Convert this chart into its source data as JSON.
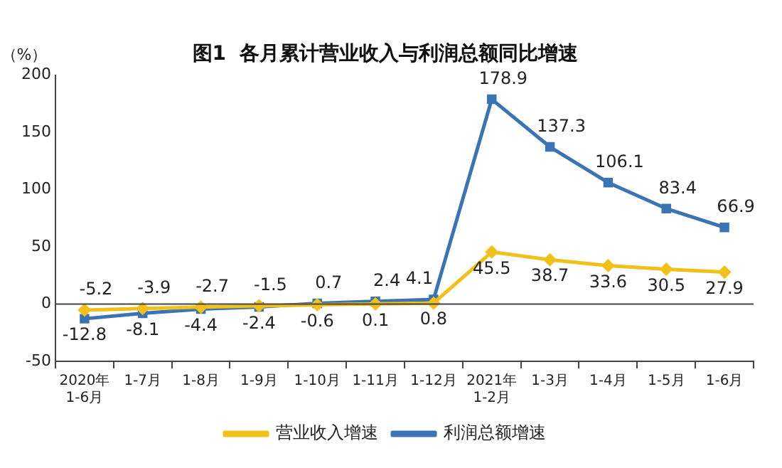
{
  "chart_data": {
    "type": "line",
    "title": "图1  各月累计营业收入与利润总额同比增速",
    "ylabel": "（%）",
    "categories": [
      "2020年\n1-6月",
      "1-7月",
      "1-8月",
      "1-9月",
      "1-10月",
      "1-11月",
      "1-12月",
      "2021年\n1-2月",
      "1-3月",
      "1-4月",
      "1-5月",
      "1-6月"
    ],
    "series": [
      {
        "name": "营业收入增速",
        "color": "#f2c01a",
        "marker": "diamond",
        "values": [
          -5.2,
          -3.9,
          -2.7,
          -1.5,
          -0.6,
          0.1,
          0.8,
          45.5,
          38.7,
          33.6,
          30.5,
          27.9
        ]
      },
      {
        "name": "利润总额增速",
        "color": "#3a74b4",
        "marker": "square",
        "values": [
          -12.8,
          -8.1,
          -4.4,
          -2.4,
          0.7,
          2.4,
          4.1,
          178.9,
          137.3,
          106.1,
          83.4,
          66.9
        ]
      }
    ],
    "ylim": [
      -50,
      200
    ],
    "yticks": [
      -50,
      0,
      50,
      100,
      150,
      200
    ],
    "data_labels": true,
    "legend": "bottom",
    "grid": false,
    "ref_lines": [
      {
        "axis": "y",
        "value": 0,
        "color": "#444444"
      }
    ]
  }
}
